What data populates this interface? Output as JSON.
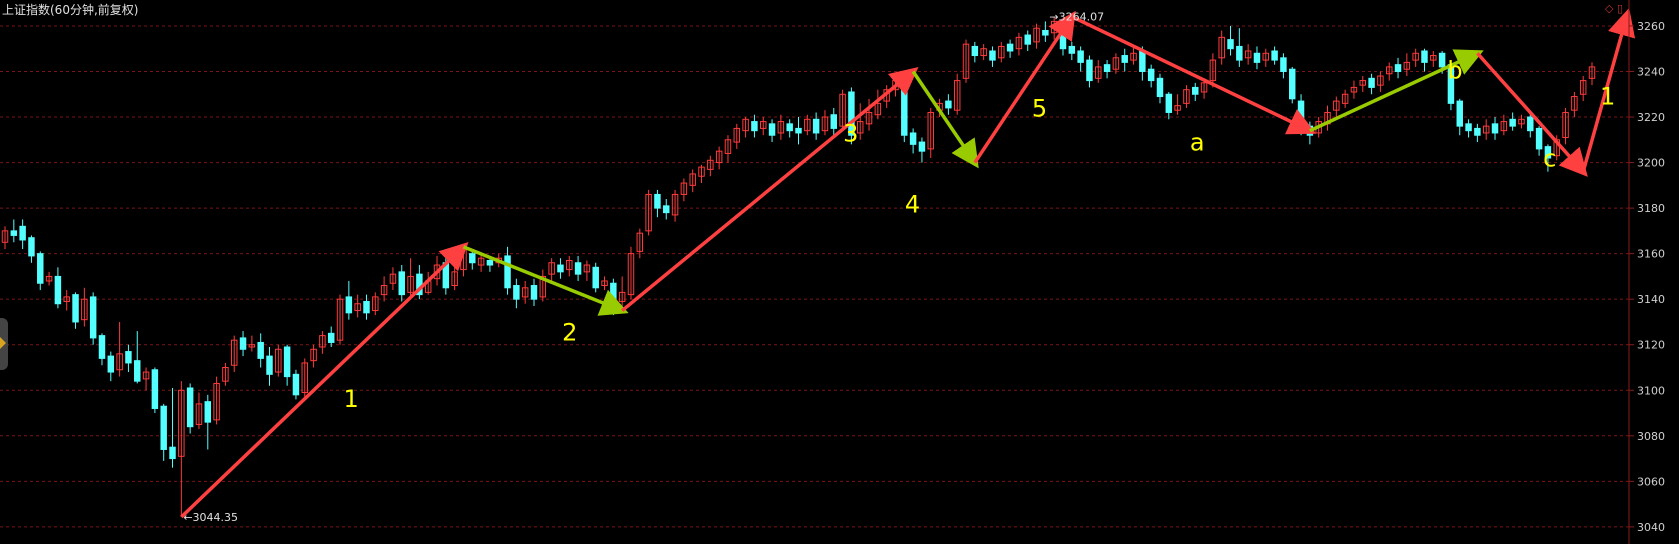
{
  "title": "上证指数(60分钟,前复权)",
  "colors": {
    "up": "#ff3b3b",
    "down": "#54ffff",
    "grid": "#7a1515",
    "axis": "#8a1a1a",
    "arrow_red": "#ff4040",
    "arrow_green": "#99cc00",
    "wave_label": "#ffff00",
    "price_label": "#e0e0e0"
  },
  "chart_data": {
    "type": "candlestick",
    "title": "上证指数(60分钟,前复权)",
    "ylim": [
      3036,
      3267
    ],
    "y_ticks": [
      3040,
      3060,
      3080,
      3100,
      3120,
      3140,
      3160,
      3180,
      3200,
      3220,
      3240,
      3260
    ],
    "grid": true,
    "annotations": {
      "low": {
        "label": "3044.35",
        "value": 3044.35
      },
      "high": {
        "label": "3264.07",
        "value": 3264.07
      }
    },
    "wave_points": [
      {
        "label": "1",
        "value": 3163
      },
      {
        "label": "2",
        "value": 3135
      },
      {
        "label": "3",
        "value": 3240
      },
      {
        "label": "4",
        "value": 3200
      },
      {
        "label": "5",
        "value": 3264.07
      },
      {
        "label": "a",
        "value": 3214
      },
      {
        "label": "b",
        "value": 3248
      },
      {
        "label": "c",
        "value": 3196
      },
      {
        "label": "1",
        "value": 3265
      }
    ],
    "series": [
      {
        "values": [
          [
            3165,
            3170,
            3162,
            3172
          ],
          [
            3170,
            3168,
            3165,
            3175
          ],
          [
            3172,
            3166,
            3162,
            3175
          ],
          [
            3167,
            3159,
            3156,
            3168
          ],
          [
            3160,
            3147,
            3144,
            3161
          ],
          [
            3148,
            3150,
            3146,
            3152
          ],
          [
            3150,
            3138,
            3136,
            3154
          ],
          [
            3139,
            3141,
            3135,
            3144
          ],
          [
            3142,
            3130,
            3127,
            3143
          ],
          [
            3131,
            3140,
            3128,
            3145
          ],
          [
            3141,
            3123,
            3120,
            3143
          ],
          [
            3124,
            3114,
            3111,
            3125
          ],
          [
            3115,
            3108,
            3104,
            3117
          ],
          [
            3109,
            3116,
            3106,
            3130
          ],
          [
            3117,
            3112,
            3108,
            3120
          ],
          [
            3113,
            3104,
            3103,
            3126
          ],
          [
            3105,
            3108,
            3100,
            3110
          ],
          [
            3109,
            3092,
            3090,
            3110
          ],
          [
            3093,
            3074,
            3069,
            3094
          ],
          [
            3075,
            3070,
            3066,
            3101
          ],
          [
            3071,
            3100,
            3044.35,
            3104
          ],
          [
            3101,
            3084,
            3081,
            3103
          ],
          [
            3085,
            3094,
            3083,
            3099
          ],
          [
            3095,
            3086,
            3074,
            3098
          ],
          [
            3087,
            3103,
            3085,
            3106
          ],
          [
            3104,
            3110,
            3102,
            3112
          ],
          [
            3111,
            3122,
            3108,
            3124
          ],
          [
            3123,
            3118,
            3115,
            3126
          ],
          [
            3119,
            3120,
            3117,
            3124
          ],
          [
            3121,
            3114,
            3110,
            3125
          ],
          [
            3115,
            3107,
            3102,
            3119
          ],
          [
            3108,
            3118,
            3106,
            3120
          ],
          [
            3119,
            3106,
            3102,
            3120
          ],
          [
            3107,
            3098,
            3096,
            3109
          ],
          [
            3099,
            3112,
            3097,
            3114
          ],
          [
            3113,
            3118,
            3110,
            3120
          ],
          [
            3119,
            3124,
            3116,
            3126
          ],
          [
            3125,
            3121,
            3119,
            3128
          ],
          [
            3122,
            3140,
            3120,
            3142
          ],
          [
            3141,
            3134,
            3131,
            3148
          ],
          [
            3135,
            3138,
            3132,
            3142
          ],
          [
            3139,
            3134,
            3131,
            3142
          ],
          [
            3135,
            3141,
            3133,
            3143
          ],
          [
            3142,
            3146,
            3139,
            3150
          ],
          [
            3147,
            3151,
            3144,
            3154
          ],
          [
            3152,
            3142,
            3139,
            3155
          ],
          [
            3143,
            3150,
            3141,
            3158
          ],
          [
            3151,
            3142,
            3140,
            3155
          ],
          [
            3143,
            3148,
            3142,
            3152
          ],
          [
            3149,
            3155,
            3146,
            3159
          ],
          [
            3156,
            3145,
            3142,
            3158
          ],
          [
            3146,
            3152,
            3144,
            3156
          ],
          [
            3153,
            3163,
            3150,
            3164
          ],
          [
            3160,
            3156,
            3153,
            3162
          ],
          [
            3155,
            3158,
            3152,
            3160
          ],
          [
            3157,
            3155,
            3152,
            3159
          ],
          [
            3156,
            3158,
            3154,
            3160
          ],
          [
            3159,
            3145,
            3142,
            3163
          ],
          [
            3146,
            3140,
            3136,
            3149
          ],
          [
            3141,
            3145,
            3138,
            3148
          ],
          [
            3146,
            3140,
            3137,
            3149
          ],
          [
            3141,
            3150,
            3139,
            3153
          ],
          [
            3151,
            3156,
            3148,
            3158
          ],
          [
            3155,
            3152,
            3149,
            3158
          ],
          [
            3153,
            3157,
            3150,
            3159
          ],
          [
            3156,
            3151,
            3148,
            3159
          ],
          [
            3152,
            3155,
            3148,
            3157
          ],
          [
            3154,
            3145,
            3143,
            3156
          ],
          [
            3146,
            3148,
            3144,
            3150
          ],
          [
            3147,
            3138,
            3133,
            3149
          ],
          [
            3139,
            3143,
            3137,
            3150
          ],
          [
            3142,
            3160,
            3140,
            3163
          ],
          [
            3161,
            3169,
            3158,
            3171
          ],
          [
            3170,
            3186,
            3168,
            3188
          ],
          [
            3186,
            3180,
            3176,
            3188
          ],
          [
            3181,
            3178,
            3175,
            3184
          ],
          [
            3177,
            3186,
            3174,
            3188
          ],
          [
            3186,
            3191,
            3183,
            3193
          ],
          [
            3190,
            3195,
            3187,
            3197
          ],
          [
            3194,
            3198,
            3191,
            3199
          ],
          [
            3197,
            3201,
            3194,
            3203
          ],
          [
            3200,
            3205,
            3197,
            3207
          ],
          [
            3204,
            3210,
            3200,
            3212
          ],
          [
            3209,
            3215,
            3206,
            3217
          ],
          [
            3214,
            3219,
            3211,
            3220
          ],
          [
            3218,
            3214,
            3211,
            3221
          ],
          [
            3215,
            3218,
            3212,
            3220
          ],
          [
            3217,
            3212,
            3209,
            3219
          ],
          [
            3213,
            3218,
            3210,
            3221
          ],
          [
            3217,
            3214,
            3211,
            3219
          ],
          [
            3215,
            3213,
            3208,
            3220
          ],
          [
            3214,
            3219,
            3212,
            3221
          ],
          [
            3219,
            3213,
            3210,
            3222
          ],
          [
            3214,
            3220,
            3212,
            3223
          ],
          [
            3221,
            3215,
            3212,
            3224
          ],
          [
            3216,
            3230,
            3214,
            3232
          ],
          [
            3231,
            3212,
            3208,
            3233
          ],
          [
            3213,
            3218,
            3210,
            3226
          ],
          [
            3217,
            3222,
            3214,
            3228
          ],
          [
            3221,
            3226,
            3219,
            3232
          ],
          [
            3227,
            3232,
            3224,
            3234
          ],
          [
            3232,
            3236,
            3229,
            3239
          ],
          [
            3233,
            3212,
            3209,
            3235
          ],
          [
            3213,
            3208,
            3204,
            3215
          ],
          [
            3209,
            3205,
            3200,
            3211
          ],
          [
            3206,
            3222,
            3202,
            3224
          ],
          [
            3223,
            3226,
            3220,
            3228
          ],
          [
            3227,
            3224,
            3221,
            3230
          ],
          [
            3223,
            3236,
            3221,
            3239
          ],
          [
            3237,
            3252,
            3235,
            3254
          ],
          [
            3251,
            3247,
            3244,
            3253
          ],
          [
            3247,
            3250,
            3245,
            3252
          ],
          [
            3249,
            3245,
            3242,
            3251
          ],
          [
            3246,
            3251,
            3244,
            3253
          ],
          [
            3252,
            3249,
            3246,
            3254
          ],
          [
            3250,
            3255,
            3247,
            3257
          ],
          [
            3256,
            3252,
            3249,
            3258
          ],
          [
            3253,
            3259,
            3250,
            3261
          ],
          [
            3258,
            3256,
            3253,
            3262
          ],
          [
            3257,
            3262,
            3254,
            3264.07
          ],
          [
            3262,
            3250,
            3247,
            3263
          ],
          [
            3251,
            3248,
            3245,
            3253
          ],
          [
            3249,
            3244,
            3240,
            3251
          ],
          [
            3245,
            3236,
            3233,
            3247
          ],
          [
            3237,
            3242,
            3235,
            3245
          ],
          [
            3243,
            3240,
            3237,
            3245
          ],
          [
            3241,
            3246,
            3239,
            3248
          ],
          [
            3247,
            3244,
            3240,
            3250
          ],
          [
            3245,
            3248,
            3243,
            3251
          ],
          [
            3249,
            3240,
            3236,
            3251
          ],
          [
            3241,
            3236,
            3233,
            3243
          ],
          [
            3237,
            3229,
            3226,
            3239
          ],
          [
            3230,
            3222,
            3219,
            3231
          ],
          [
            3223,
            3225,
            3221,
            3230
          ],
          [
            3226,
            3232,
            3224,
            3234
          ],
          [
            3233,
            3230,
            3227,
            3235
          ],
          [
            3231,
            3235,
            3228,
            3237
          ],
          [
            3236,
            3245,
            3233,
            3248
          ],
          [
            3246,
            3255,
            3243,
            3258
          ],
          [
            3254,
            3250,
            3247,
            3260
          ],
          [
            3251,
            3245,
            3242,
            3259
          ],
          [
            3246,
            3249,
            3243,
            3252
          ],
          [
            3248,
            3244,
            3241,
            3251
          ],
          [
            3245,
            3248,
            3242,
            3250
          ],
          [
            3249,
            3245,
            3243,
            3251
          ],
          [
            3246,
            3240,
            3237,
            3248
          ],
          [
            3241,
            3228,
            3226,
            3242
          ],
          [
            3227,
            3215,
            3212,
            3230
          ],
          [
            3216,
            3212,
            3208,
            3218
          ],
          [
            3213,
            3218,
            3211,
            3220
          ],
          [
            3217,
            3222,
            3214,
            3225
          ],
          [
            3223,
            3227,
            3220,
            3229
          ],
          [
            3226,
            3230,
            3224,
            3232
          ],
          [
            3231,
            3233,
            3228,
            3236
          ],
          [
            3234,
            3236,
            3231,
            3238
          ],
          [
            3237,
            3233,
            3230,
            3239
          ],
          [
            3234,
            3238,
            3231,
            3240
          ],
          [
            3239,
            3242,
            3236,
            3244
          ],
          [
            3243,
            3240,
            3237,
            3246
          ],
          [
            3241,
            3244,
            3238,
            3248
          ],
          [
            3245,
            3248,
            3242,
            3250
          ],
          [
            3249,
            3244,
            3240,
            3250
          ],
          [
            3245,
            3247,
            3242,
            3249
          ],
          [
            3248,
            3242,
            3239,
            3249
          ],
          [
            3243,
            3226,
            3223,
            3244
          ],
          [
            3227,
            3216,
            3212,
            3228
          ],
          [
            3217,
            3214,
            3211,
            3219
          ],
          [
            3215,
            3212,
            3209,
            3217
          ],
          [
            3213,
            3216,
            3210,
            3219
          ],
          [
            3217,
            3213,
            3210,
            3220
          ],
          [
            3214,
            3218,
            3212,
            3221
          ],
          [
            3219,
            3216,
            3214,
            3222
          ],
          [
            3217,
            3219,
            3215,
            3221
          ],
          [
            3220,
            3214,
            3211,
            3222
          ],
          [
            3215,
            3206,
            3203,
            3216
          ],
          [
            3207,
            3202,
            3196,
            3208
          ],
          [
            3203,
            3210,
            3201,
            3212
          ],
          [
            3211,
            3222,
            3208,
            3224
          ],
          [
            3223,
            3229,
            3220,
            3231
          ],
          [
            3230,
            3236,
            3227,
            3238
          ],
          [
            3237,
            3242,
            3234,
            3244
          ]
        ]
      }
    ]
  }
}
